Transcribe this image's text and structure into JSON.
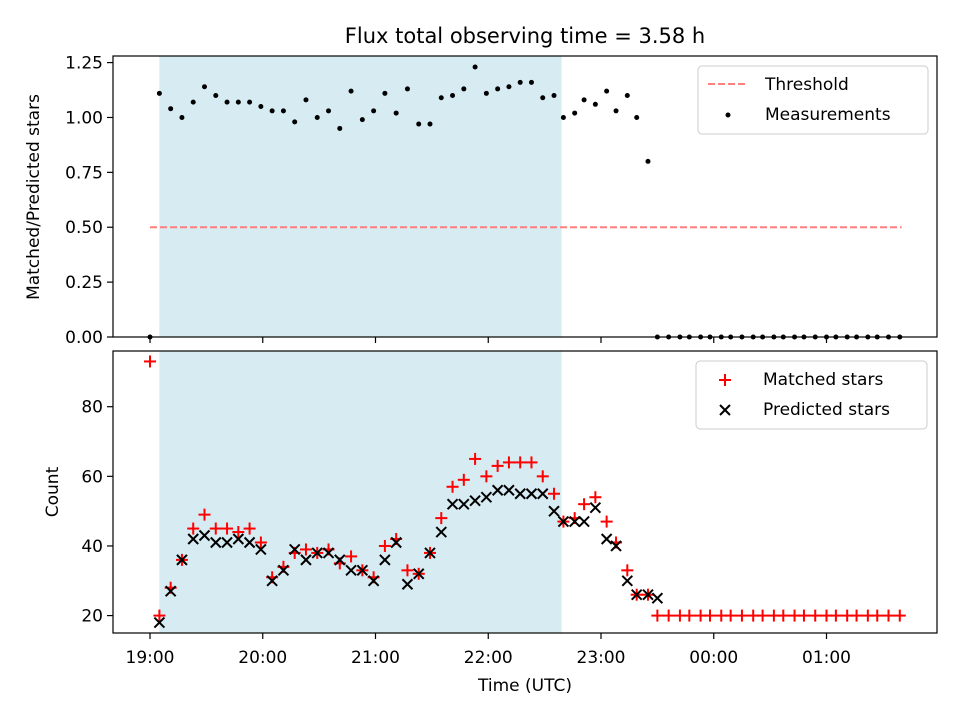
{
  "title": "Flux total observing time = 3.58 h",
  "chart_data": [
    {
      "type": "scatter",
      "panel": "top",
      "ylabel": "Matched/Predicted stars",
      "ylim": [
        0,
        1.28
      ],
      "yticks": [
        "0.00",
        "0.25",
        "0.50",
        "0.75",
        "1.00",
        "1.25"
      ],
      "threshold": {
        "name": "Threshold",
        "value": 0.5,
        "color": "#ff7f7f",
        "x_range": [
          "19:00",
          "01:40"
        ]
      },
      "measurement_color": "#000000",
      "measurements_name": "Measurements",
      "legend_position": "upper-right",
      "shaded_span": [
        "19:05",
        "22:39"
      ],
      "shade_color": "#add8e6",
      "x": [
        "19:00",
        "19:05",
        "19:11",
        "19:17",
        "19:23",
        "19:29",
        "19:35",
        "19:41",
        "19:47",
        "19:53",
        "19:59",
        "20:05",
        "20:11",
        "20:17",
        "20:23",
        "20:29",
        "20:35",
        "20:41",
        "20:47",
        "20:53",
        "20:59",
        "21:05",
        "21:11",
        "21:17",
        "21:23",
        "21:29",
        "21:35",
        "21:41",
        "21:47",
        "21:53",
        "21:59",
        "22:05",
        "22:11",
        "22:17",
        "22:23",
        "22:29",
        "22:35",
        "22:40",
        "22:46",
        "22:51",
        "22:57",
        "23:03",
        "23:08",
        "23:14",
        "23:19",
        "23:25",
        "23:30",
        "23:36",
        "23:42",
        "23:47",
        "23:53",
        "23:58",
        "00:04",
        "00:09",
        "00:15",
        "00:21",
        "00:26",
        "00:32",
        "00:37",
        "00:43",
        "00:48",
        "00:54",
        "01:00",
        "01:05",
        "01:11",
        "01:16",
        "01:22",
        "01:27",
        "01:33",
        "01:39"
      ],
      "y": [
        0.0,
        1.11,
        1.04,
        1.0,
        1.07,
        1.14,
        1.1,
        1.07,
        1.07,
        1.07,
        1.05,
        1.03,
        1.03,
        0.98,
        1.08,
        1.0,
        1.03,
        0.95,
        1.12,
        0.99,
        1.03,
        1.11,
        1.02,
        1.13,
        0.97,
        0.97,
        1.09,
        1.1,
        1.13,
        1.23,
        1.11,
        1.13,
        1.14,
        1.16,
        1.16,
        1.09,
        1.1,
        1.0,
        1.02,
        1.08,
        1.06,
        1.12,
        1.03,
        1.1,
        1.0,
        0.8,
        0.0,
        0.0,
        0.0,
        0.0,
        0.0,
        0.0,
        0.0,
        0.0,
        0.0,
        0.0,
        0.0,
        0.0,
        0.0,
        0.0,
        0.0,
        0.0,
        0.0,
        0.0,
        0.0,
        0.0,
        0.0,
        0.0,
        0.0,
        0.0
      ]
    },
    {
      "type": "scatter",
      "panel": "bottom",
      "xlabel": "Time (UTC)",
      "ylabel": "Count",
      "ylim": [
        15,
        96
      ],
      "yticks": [
        "20",
        "40",
        "60",
        "80"
      ],
      "xticks": [
        "19:00",
        "20:00",
        "21:00",
        "22:00",
        "23:00",
        "00:00",
        "01:00"
      ],
      "legend_position": "upper-right",
      "shaded_span": [
        "19:05",
        "22:39"
      ],
      "series": [
        {
          "name": "Matched stars",
          "marker": "plus",
          "color": "#ff0000",
          "x": [
            "19:00",
            "19:05",
            "19:11",
            "19:17",
            "19:23",
            "19:29",
            "19:35",
            "19:41",
            "19:47",
            "19:53",
            "19:59",
            "20:05",
            "20:11",
            "20:17",
            "20:23",
            "20:29",
            "20:35",
            "20:41",
            "20:47",
            "20:53",
            "20:59",
            "21:05",
            "21:11",
            "21:17",
            "21:23",
            "21:29",
            "21:35",
            "21:41",
            "21:47",
            "21:53",
            "21:59",
            "22:05",
            "22:11",
            "22:17",
            "22:23",
            "22:29",
            "22:35",
            "22:40",
            "22:46",
            "22:51",
            "22:57",
            "23:03",
            "23:08",
            "23:14",
            "23:19",
            "23:25",
            "23:30",
            "23:36",
            "23:42",
            "23:47",
            "23:53",
            "23:58",
            "00:04",
            "00:09",
            "00:15",
            "00:21",
            "00:26",
            "00:32",
            "00:37",
            "00:43",
            "00:48",
            "00:54",
            "01:00",
            "01:05",
            "01:11",
            "01:16",
            "01:22",
            "01:27",
            "01:33",
            "01:39"
          ],
          "y": [
            93,
            20,
            28,
            36,
            45,
            49,
            45,
            45,
            44,
            45,
            41,
            31,
            34,
            38,
            39,
            38,
            39,
            35,
            37,
            33,
            31,
            40,
            42,
            33,
            32,
            38,
            48,
            57,
            59,
            65,
            60,
            63,
            64,
            64,
            64,
            60,
            55,
            47,
            48,
            52,
            54,
            47,
            41,
            33,
            26,
            26,
            20,
            20,
            20,
            20,
            20,
            20,
            20,
            20,
            20,
            20,
            20,
            20,
            20,
            20,
            20,
            20,
            20,
            20,
            20,
            20,
            20,
            20,
            20,
            20
          ]
        },
        {
          "name": "Predicted stars",
          "marker": "cross",
          "color": "#000000",
          "x": [
            "19:05",
            "19:11",
            "19:17",
            "19:23",
            "19:29",
            "19:35",
            "19:41",
            "19:47",
            "19:53",
            "19:59",
            "20:05",
            "20:11",
            "20:17",
            "20:23",
            "20:29",
            "20:35",
            "20:41",
            "20:47",
            "20:53",
            "20:59",
            "21:05",
            "21:11",
            "21:17",
            "21:23",
            "21:29",
            "21:35",
            "21:41",
            "21:47",
            "21:53",
            "21:59",
            "22:05",
            "22:11",
            "22:17",
            "22:23",
            "22:29",
            "22:35",
            "22:40",
            "22:46",
            "22:51",
            "22:57",
            "23:03",
            "23:08",
            "23:14",
            "23:19",
            "23:25",
            "23:30"
          ],
          "y": [
            18,
            27,
            36,
            42,
            43,
            41,
            41,
            42,
            41,
            39,
            30,
            33,
            39,
            36,
            38,
            38,
            36,
            33,
            33,
            30,
            36,
            41,
            29,
            32,
            38,
            44,
            52,
            52,
            53,
            54,
            56,
            56,
            55,
            55,
            55,
            50,
            47,
            47,
            47,
            51,
            42,
            40,
            30,
            26,
            26,
            25
          ]
        }
      ]
    }
  ]
}
